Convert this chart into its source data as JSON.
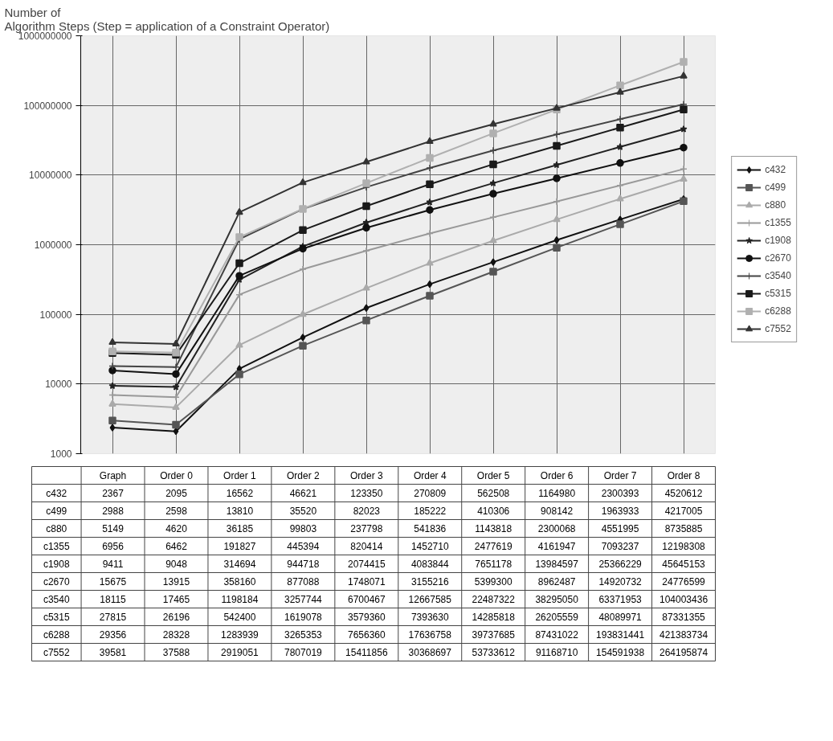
{
  "chart_data": {
    "type": "line",
    "title": "Number of\nAlgorithm Steps (Step = application of a Constraint Operator)",
    "categories": [
      "Graph",
      "Order 0",
      "Order 1",
      "Order 2",
      "Order 3",
      "Order 4",
      "Order 5",
      "Order 6",
      "Order 7",
      "Order 8"
    ],
    "log": true,
    "ylim": [
      1000,
      1000000000
    ],
    "yticks": [
      1000,
      10000,
      100000,
      1000000,
      10000000,
      100000000,
      1000000000
    ],
    "grid": true,
    "legend": "right",
    "data_labels": true,
    "series": [
      {
        "name": "c432",
        "color": "#111111",
        "marker": "diamond",
        "values": [
          2367,
          2095,
          16562,
          46621,
          123350,
          270809,
          562508,
          1164980,
          2300393,
          4520612
        ]
      },
      {
        "name": "c499",
        "color": "#555555",
        "marker": "square",
        "values": [
          2988,
          2598,
          13810,
          35520,
          82023,
          185222,
          410306,
          908142,
          1963933,
          4217005
        ]
      },
      {
        "name": "c880",
        "color": "#aaaaaa",
        "marker": "triangle",
        "values": [
          5149,
          4620,
          36185,
          99803,
          237798,
          541836,
          1143818,
          2300068,
          4551995,
          8735885
        ]
      },
      {
        "name": "c1355",
        "color": "#999999",
        "marker": "cross",
        "values": [
          6956,
          6462,
          191827,
          445394,
          820414,
          1452710,
          2477619,
          4161947,
          7093237,
          12198308
        ]
      },
      {
        "name": "c1908",
        "color": "#222222",
        "marker": "star",
        "values": [
          9411,
          9048,
          314694,
          944718,
          2074415,
          4083844,
          7651178,
          13984597,
          25366229,
          45645153
        ]
      },
      {
        "name": "c2670",
        "color": "#111111",
        "marker": "circle",
        "values": [
          15675,
          13915,
          358160,
          877088,
          1748071,
          3155216,
          5399300,
          8962487,
          14920732,
          24776599
        ]
      },
      {
        "name": "c3540",
        "color": "#444444",
        "marker": "cross",
        "values": [
          18115,
          17465,
          1198184,
          3257744,
          6700467,
          12667585,
          22487322,
          38295050,
          63371953,
          104003436
        ]
      },
      {
        "name": "c5315",
        "color": "#1a1a1a",
        "marker": "square",
        "values": [
          27815,
          26196,
          542400,
          1619078,
          3579360,
          7393630,
          14285818,
          26205559,
          48089971,
          87331355
        ]
      },
      {
        "name": "c6288",
        "color": "#b0b0b0",
        "marker": "square",
        "values": [
          29356,
          28328,
          1283939,
          3265353,
          7656360,
          17636758,
          39737685,
          87431022,
          193831441,
          421383734
        ]
      },
      {
        "name": "c7552",
        "color": "#333333",
        "marker": "triangle",
        "values": [
          39581,
          37588,
          2919051,
          7807019,
          15411856,
          30368697,
          53733612,
          91168710,
          154591938,
          264195874
        ]
      }
    ]
  }
}
